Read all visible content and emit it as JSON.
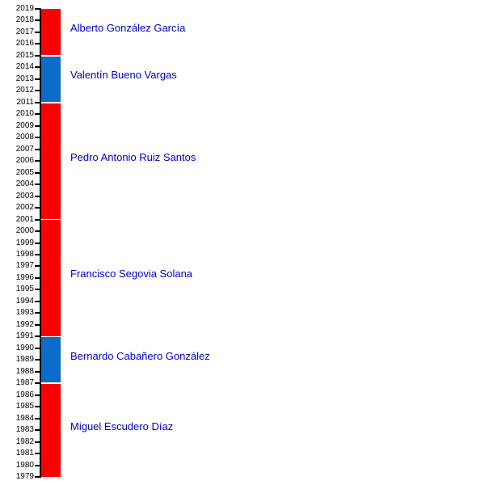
{
  "chart_data": {
    "type": "bar",
    "subtype": "timeline",
    "title": "",
    "xlabel": "",
    "ylabel": "",
    "time_axis": {
      "min_year": 1979,
      "max_year": 2019,
      "tick_interval": 1,
      "tick_side": "left",
      "direction": "bottom-up"
    },
    "layout": {
      "grid": false,
      "legend": false,
      "bar_orientation": "vertical",
      "labels_position": "right-of-bar"
    },
    "terms": [
      {
        "name": "Alberto González García",
        "start": 2015,
        "end": 2019,
        "party_color": "red"
      },
      {
        "name": "Valentín Bueno Vargas",
        "start": 2011,
        "end": 2015,
        "party_color": "blue"
      },
      {
        "name": "Pedro Antonio Ruiz Santos",
        "start": 2001,
        "end": 2011,
        "party_color": "red"
      },
      {
        "name": "Francisco Segovia Solana",
        "start": 1991,
        "end": 2001,
        "party_color": "red"
      },
      {
        "name": "Bernardo Cabañero González",
        "start": 1987,
        "end": 1991,
        "party_color": "blue"
      },
      {
        "name": "Miguel Escudero Díaz",
        "start": 1979,
        "end": 1987,
        "party_color": "red"
      }
    ],
    "colors": {
      "red": "#FA0000",
      "blue": "#0D6CC9",
      "label_text": "#0000CC",
      "axis": "#000000",
      "tick_label_text": "#000000",
      "separator": "#FFFFFF",
      "background": "#FFFFFF"
    }
  }
}
